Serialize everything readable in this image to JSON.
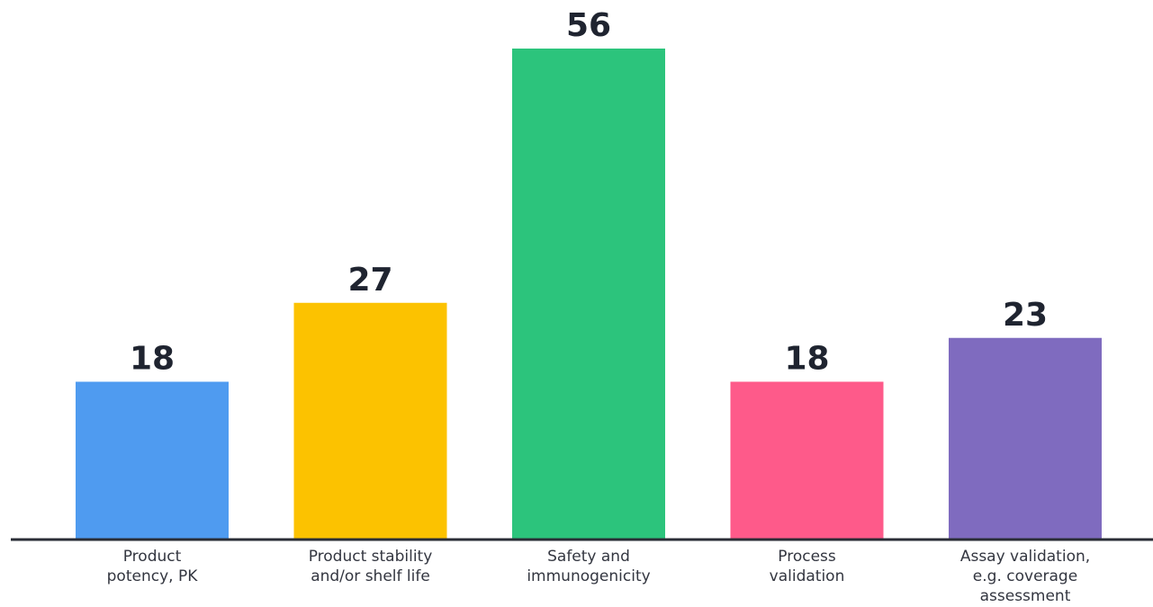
{
  "chart_data": {
    "type": "bar",
    "categories": [
      [
        "Product",
        "potency, PK"
      ],
      [
        "Product stability",
        "and/or shelf life"
      ],
      [
        "Safety and",
        "immunogenicity"
      ],
      [
        "Process",
        "validation"
      ],
      [
        "Assay validation,",
        "e.g. coverage",
        "assessment"
      ]
    ],
    "values": [
      18,
      27,
      56,
      18,
      23
    ],
    "data_labels": [
      "18",
      "27",
      "56",
      "18",
      "23"
    ],
    "colors": [
      "#4f9bf0",
      "#fcc200",
      "#2cc47c",
      "#fe5a8a",
      "#7f6bbf"
    ],
    "ylim": [
      0,
      56
    ],
    "grid": false,
    "legend": "none"
  }
}
